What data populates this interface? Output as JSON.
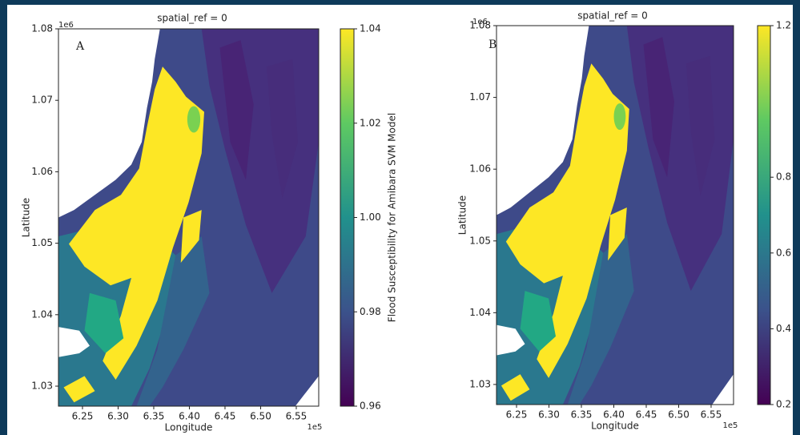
{
  "chart_data": [
    {
      "type": "raster",
      "title": "spatial_ref = 0",
      "panel_label": "A",
      "xlabel": "Longitude",
      "ylabel": "Latitude",
      "x_offset": "1e5",
      "y_offset": "1e6",
      "xlim": [
        6.2163,
        6.5815
      ],
      "ylim": [
        1.0272,
        1.08
      ],
      "xticks": [
        6.25,
        {
          "value": 6.3,
          "label": "6.30"
        },
        6.35,
        {
          "value": 6.4,
          "label": "6.40"
        },
        6.45,
        {
          "value": 6.5,
          "label": "6.50"
        },
        6.55
      ],
      "yticks": [
        1.03,
        1.04,
        1.05,
        1.06,
        1.07,
        1.08
      ],
      "colormap": [
        "#440154",
        "#3b528b",
        "#21918c",
        "#5ec962",
        "#fde725"
      ],
      "colorbar_label": "Flood Susceptibility for Amibara SVM Model",
      "clim": [
        0.96,
        1.04
      ],
      "cticks": [
        0.96,
        0.98,
        {
          "value": 1.0,
          "label": "1.00"
        },
        1.02,
        1.04
      ]
    },
    {
      "type": "raster",
      "title": "spatial_ref = 0",
      "panel_label": "B",
      "xlabel": "Longitude",
      "ylabel": "Latitude",
      "x_offset": "1e5",
      "y_offset": "1e6",
      "xlim": [
        6.2191,
        6.5846
      ],
      "ylim": [
        1.0272,
        1.08
      ],
      "xticks": [
        6.25,
        {
          "value": 6.3,
          "label": "6.30"
        },
        6.35,
        {
          "value": 6.4,
          "label": "6.40"
        },
        6.45,
        {
          "value": 6.5,
          "label": "6.50"
        },
        6.55
      ],
      "yticks": [
        1.03,
        1.04,
        1.05,
        1.06,
        1.07,
        1.08
      ],
      "colormap": [
        "#440154",
        "#3b528b",
        "#21918c",
        "#5ec962",
        "#fde725"
      ],
      "clim": [
        0.2,
        1.2
      ],
      "cticks": [
        0.2,
        0.4,
        0.6,
        0.8,
        1.2
      ]
    }
  ]
}
